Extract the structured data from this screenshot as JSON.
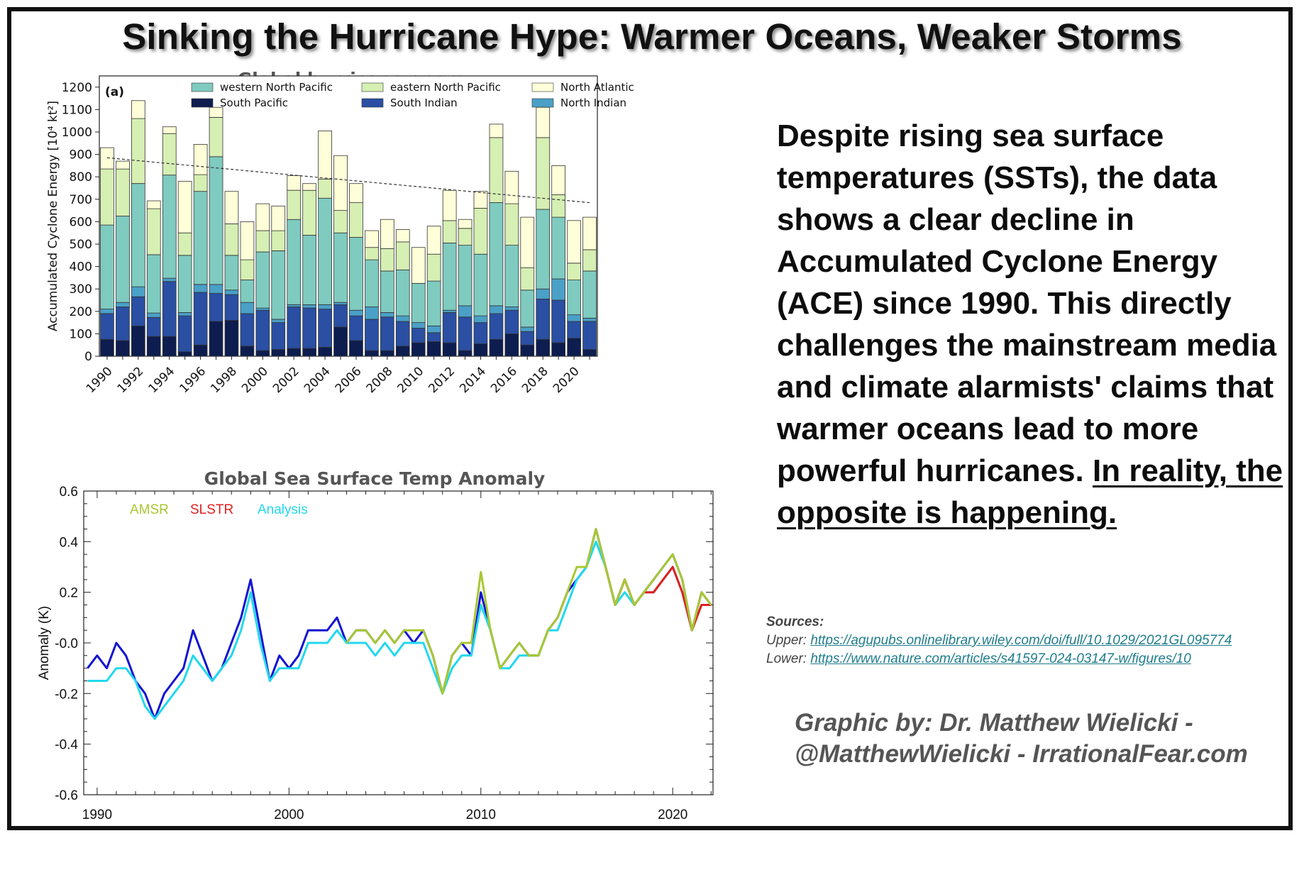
{
  "header": {
    "title": "Sinking the Hurricane Hype: Warmer Oceans, Weaker Storms"
  },
  "body": {
    "text": "Despite rising sea surface temperatures (SSTs), the data shows a clear decline in Accumulated Cyclone Energy (ACE) since 1990. This directly challenges the mainstream media and climate alarmists' claims that warmer oceans lead to more powerful hurricanes.",
    "emphasis": "In reality, the opposite is happening."
  },
  "sources": {
    "heading": "Sources:",
    "upper_label": "Upper:",
    "upper_url": "https://agupubs.onlinelibrary.wiley.com/doi/full/10.1029/2021GL095774",
    "lower_label": "Lower:",
    "lower_url": "https://www.nature.com/articles/s41597-024-03147-w/figures/10"
  },
  "credit": {
    "line1": "Graphic by: Dr. Matthew Wielicki -",
    "line2": "@MatthewWielicki - IrrationalFear.com"
  },
  "chart_data": [
    {
      "type": "bar",
      "stacked": true,
      "title": "Global hurricane energy",
      "panel_label": "(a)",
      "ylabel": "Accumulated Cyclone Energy [10⁴ kt²]",
      "ylim": [
        0,
        1250
      ],
      "yticks": [
        0,
        100,
        200,
        300,
        400,
        500,
        600,
        700,
        800,
        900,
        1000,
        1100,
        1200
      ],
      "xtick_labels": [
        "1990",
        "1992",
        "1994",
        "1996",
        "1998",
        "2000",
        "2002",
        "2004",
        "2006",
        "2008",
        "2010",
        "2012",
        "2014",
        "2016",
        "2018",
        "2020"
      ],
      "categories": [
        1990,
        1991,
        1992,
        1993,
        1994,
        1995,
        1996,
        1997,
        1998,
        1999,
        2000,
        2001,
        2002,
        2003,
        2004,
        2005,
        2006,
        2007,
        2008,
        2009,
        2010,
        2011,
        2012,
        2013,
        2014,
        2015,
        2016,
        2017,
        2018,
        2019,
        2020,
        2021
      ],
      "legend_placement": "top",
      "series": [
        {
          "name": "South Pacific",
          "color": "#0e1d4f",
          "values": [
            75,
            70,
            135,
            88,
            88,
            20,
            50,
            155,
            160,
            45,
            25,
            30,
            35,
            35,
            40,
            130,
            70,
            25,
            25,
            45,
            60,
            65,
            60,
            25,
            55,
            75,
            100,
            50,
            75,
            60,
            80,
            30
          ]
        },
        {
          "name": "South Indian",
          "color": "#2a4fa3",
          "values": [
            115,
            150,
            130,
            85,
            245,
            160,
            235,
            125,
            115,
            145,
            180,
            120,
            185,
            180,
            170,
            100,
            110,
            140,
            150,
            110,
            65,
            40,
            135,
            150,
            95,
            115,
            105,
            60,
            180,
            190,
            75,
            125
          ]
        },
        {
          "name": "North Indian",
          "color": "#4aa0c7",
          "values": [
            20,
            20,
            45,
            20,
            15,
            15,
            35,
            40,
            20,
            50,
            10,
            15,
            10,
            15,
            20,
            10,
            25,
            55,
            20,
            25,
            25,
            30,
            10,
            50,
            30,
            35,
            15,
            20,
            45,
            95,
            30,
            15
          ]
        },
        {
          "name": "western North Pacific",
          "color": "#7fcbc0",
          "values": [
            375,
            385,
            460,
            260,
            460,
            255,
            415,
            570,
            155,
            100,
            250,
            305,
            380,
            310,
            475,
            310,
            325,
            210,
            185,
            205,
            175,
            200,
            300,
            270,
            275,
            460,
            275,
            165,
            355,
            275,
            155,
            210
          ]
        },
        {
          "name": "eastern North Pacific",
          "color": "#d6efb3",
          "values": [
            250,
            210,
            290,
            205,
            185,
            100,
            75,
            175,
            140,
            90,
            95,
            90,
            130,
            200,
            85,
            100,
            155,
            55,
            100,
            125,
            0,
            120,
            100,
            75,
            205,
            290,
            185,
            100,
            320,
            100,
            75,
            95
          ]
        },
        {
          "name": "North Atlantic",
          "color": "#fefed8",
          "values": [
            95,
            35,
            80,
            35,
            30,
            230,
            135,
            45,
            145,
            170,
            120,
            110,
            65,
            30,
            215,
            245,
            85,
            75,
            130,
            55,
            160,
            125,
            135,
            40,
            75,
            60,
            145,
            225,
            135,
            130,
            190,
            145
          ]
        }
      ],
      "trend": {
        "x": [
          1990,
          2021
        ],
        "y": [
          885,
          685
        ],
        "style": "dashed"
      }
    },
    {
      "type": "line",
      "title": "Global Sea Surface Temp Anomaly",
      "ylabel": "Anomaly (K)",
      "ylim": [
        -0.6,
        0.6
      ],
      "yticks": [
        -0.6,
        -0.4,
        -0.2,
        0.0,
        0.2,
        0.4,
        0.6
      ],
      "ytick_labels": [
        "-0.6",
        "-0.4",
        "-0.2",
        "-0.0",
        "0.2",
        "0.4",
        "0.6"
      ],
      "xlim": [
        1989.3,
        2022.1
      ],
      "xticks": [
        1990,
        2000,
        2010,
        2020
      ],
      "legend_placement": "top-left",
      "legend_visible": [
        "AMSR",
        "SLSTR",
        "Analysis"
      ],
      "legend_colors": {
        "AMSR": "#a8c832",
        "SLSTR": "#e02020",
        "Analysis": "#22d8ee"
      },
      "x": [
        1989.5,
        1990.0,
        1990.5,
        1991.0,
        1991.5,
        1992.0,
        1992.5,
        1993.0,
        1993.5,
        1994.0,
        1994.5,
        1995.0,
        1995.5,
        1996.0,
        1996.5,
        1997.0,
        1997.5,
        1998.0,
        1998.5,
        1999.0,
        1999.5,
        2000.0,
        2000.5,
        2001.0,
        2001.5,
        2002.0,
        2002.5,
        2003.0,
        2003.5,
        2004.0,
        2004.5,
        2005.0,
        2005.5,
        2006.0,
        2006.5,
        2007.0,
        2007.5,
        2008.0,
        2008.5,
        2009.0,
        2009.5,
        2010.0,
        2010.5,
        2011.0,
        2011.5,
        2012.0,
        2012.5,
        2013.0,
        2013.5,
        2014.0,
        2014.5,
        2015.0,
        2015.5,
        2016.0,
        2016.5,
        2017.0,
        2017.5,
        2018.0,
        2018.5,
        2019.0,
        2019.5,
        2020.0,
        2020.5,
        2021.0,
        2021.5,
        2022.0
      ],
      "series": [
        {
          "name": "",
          "color": "#1414d2",
          "values": [
            -0.1,
            -0.05,
            -0.1,
            0.0,
            -0.05,
            -0.15,
            -0.2,
            -0.3,
            -0.2,
            -0.15,
            -0.1,
            0.05,
            -0.05,
            -0.15,
            -0.1,
            0.0,
            0.1,
            0.25,
            0.05,
            -0.15,
            -0.05,
            -0.1,
            -0.05,
            0.05,
            0.05,
            0.05,
            0.1,
            0.0,
            0.05,
            0.05,
            0.0,
            0.05,
            0.0,
            0.05,
            0.0,
            0.05,
            -0.05,
            -0.2,
            -0.05,
            0.0,
            -0.05,
            0.2,
            0.05,
            -0.1,
            -0.05,
            0.0,
            -0.05,
            -0.05,
            0.05,
            0.1,
            0.2,
            0.25,
            0.3,
            0.45,
            0.3,
            0.15,
            0.25,
            0.15,
            0.2,
            0.25,
            0.3,
            0.35,
            0.25,
            0.05,
            0.2,
            0.15
          ]
        },
        {
          "name": "Analysis",
          "color": "#22d8ee",
          "values": [
            -0.15,
            -0.15,
            -0.15,
            -0.1,
            -0.1,
            -0.15,
            -0.25,
            -0.3,
            -0.25,
            -0.2,
            -0.15,
            -0.05,
            -0.1,
            -0.15,
            -0.1,
            -0.05,
            0.05,
            0.2,
            0.0,
            -0.15,
            -0.1,
            -0.1,
            -0.1,
            0.0,
            0.0,
            0.0,
            0.05,
            0.0,
            0.0,
            0.0,
            -0.05,
            0.0,
            -0.05,
            0.0,
            0.0,
            0.0,
            -0.1,
            -0.2,
            -0.1,
            -0.05,
            -0.05,
            0.15,
            0.05,
            -0.1,
            -0.1,
            -0.05,
            -0.05,
            -0.05,
            0.05,
            0.05,
            0.15,
            0.25,
            0.3,
            0.4,
            0.3,
            0.15,
            0.2,
            0.15,
            0.2,
            0.2,
            0.25,
            0.3,
            0.2,
            0.05,
            0.15,
            0.15
          ]
        },
        {
          "name": "SLSTR",
          "color": "#e02020",
          "values": [
            null,
            null,
            null,
            null,
            null,
            null,
            null,
            null,
            null,
            null,
            null,
            null,
            null,
            null,
            null,
            null,
            null,
            null,
            null,
            null,
            null,
            null,
            null,
            null,
            null,
            null,
            null,
            null,
            null,
            null,
            null,
            null,
            null,
            null,
            null,
            null,
            null,
            null,
            null,
            null,
            null,
            null,
            null,
            null,
            null,
            null,
            null,
            null,
            null,
            null,
            null,
            null,
            null,
            null,
            0.3,
            0.15,
            0.25,
            0.15,
            0.2,
            0.2,
            0.25,
            0.3,
            0.2,
            0.05,
            0.15,
            0.15
          ]
        },
        {
          "name": "AMSR",
          "color": "#a8c832",
          "values": [
            null,
            null,
            null,
            null,
            null,
            null,
            null,
            null,
            null,
            null,
            null,
            null,
            null,
            null,
            null,
            null,
            null,
            null,
            null,
            null,
            null,
            null,
            null,
            null,
            null,
            null,
            null,
            0.0,
            0.05,
            0.05,
            0.0,
            0.05,
            0.0,
            0.05,
            0.05,
            0.05,
            -0.05,
            -0.2,
            -0.05,
            0.0,
            0.0,
            0.28,
            0.05,
            -0.1,
            -0.05,
            0.0,
            -0.05,
            -0.05,
            0.05,
            0.1,
            0.2,
            0.3,
            0.3,
            0.45,
            0.3,
            0.15,
            0.25,
            0.15,
            0.2,
            0.25,
            0.3,
            0.35,
            0.25,
            0.05,
            0.2,
            0.15
          ]
        }
      ]
    }
  ]
}
